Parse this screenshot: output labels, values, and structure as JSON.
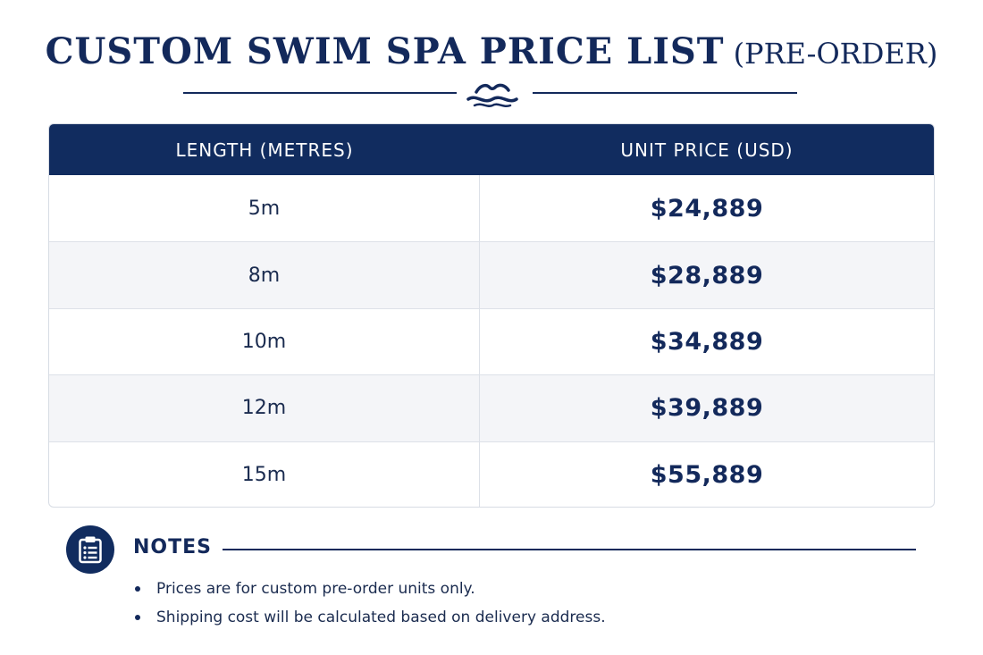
{
  "header": {
    "title": "CUSTOM SWIM SPA PRICE LIST",
    "subtitle": "(PRE-ORDER)",
    "ornament_icon": "water-waves-icon"
  },
  "table": {
    "columns": [
      "LENGTH (METRES)",
      "UNIT PRICE (USD)"
    ],
    "rows": [
      {
        "length": "5m",
        "price": "$24,889"
      },
      {
        "length": "8m",
        "price": "$28,889"
      },
      {
        "length": "10m",
        "price": "$34,889"
      },
      {
        "length": "12m",
        "price": "$39,889"
      },
      {
        "length": "15m",
        "price": "$55,889"
      }
    ]
  },
  "notes": {
    "title": "NOTES",
    "icon": "clipboard-list-icon",
    "items": [
      "Prices are for custom pre-order units only.",
      "Shipping cost will be calculated based on delivery address."
    ]
  },
  "colors": {
    "navy": "#112c5f",
    "row_alt": "#f4f5f8",
    "border": "#dde1e8"
  }
}
